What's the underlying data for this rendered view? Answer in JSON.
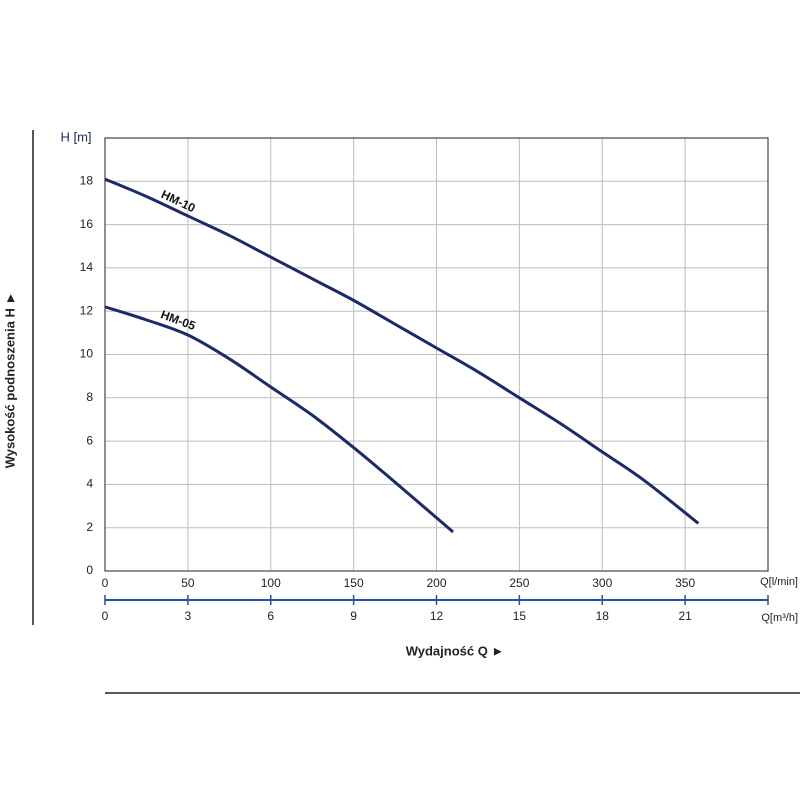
{
  "chart_data": {
    "type": "line",
    "y_label": "H [m]",
    "y_title": "Wysokość podnoszenia H ►",
    "x_title": "Wydajność Q ►",
    "x_unit": "Q[l/min]",
    "x2_unit": "Q[m³/h]",
    "xlim": [
      0,
      400
    ],
    "xticks": [
      0,
      50,
      100,
      150,
      200,
      250,
      300,
      350
    ],
    "x2lim": [
      0,
      24
    ],
    "x2ticks": [
      0,
      3,
      6,
      9,
      12,
      15,
      18,
      21
    ],
    "ylim": [
      0,
      20
    ],
    "yticks": [
      0,
      2,
      4,
      6,
      8,
      10,
      12,
      14,
      16,
      18
    ],
    "grid": true,
    "series": [
      {
        "name": "HM-10",
        "color": "#1b2a6b",
        "x": [
          0,
          25,
          50,
          75,
          100,
          125,
          150,
          175,
          200,
          225,
          250,
          275,
          300,
          325,
          358
        ],
        "values": [
          18.1,
          17.3,
          16.4,
          15.5,
          14.5,
          13.5,
          12.5,
          11.4,
          10.3,
          9.2,
          8.0,
          6.8,
          5.5,
          4.2,
          2.2
        ]
      },
      {
        "name": "HM-05",
        "color": "#1b2a6b",
        "x": [
          0,
          25,
          50,
          75,
          100,
          125,
          150,
          175,
          210
        ],
        "values": [
          12.2,
          11.6,
          10.9,
          9.8,
          8.5,
          7.2,
          5.7,
          4.1,
          1.8
        ]
      }
    ]
  }
}
